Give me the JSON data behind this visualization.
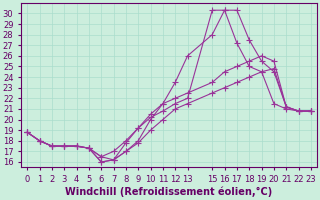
{
  "xlabel": "Windchill (Refroidissement éolien,°C)",
  "bg_color": "#cceedd",
  "line_color": "#993399",
  "xlim": [
    -0.5,
    23.5
  ],
  "ylim": [
    15.5,
    31.0
  ],
  "xticks": [
    0,
    1,
    2,
    3,
    4,
    5,
    6,
    7,
    8,
    9,
    10,
    11,
    12,
    13,
    15,
    16,
    17,
    18,
    19,
    20,
    21,
    22,
    23
  ],
  "xtick_labels": [
    "0",
    "1",
    "2",
    "3",
    "4",
    "5",
    "6",
    "7",
    "8",
    "9",
    "10",
    "11",
    "12",
    "13",
    "15",
    "16",
    "17",
    "18",
    "19",
    "20",
    "21",
    "22",
    "23"
  ],
  "yticks": [
    16,
    17,
    18,
    19,
    20,
    21,
    22,
    23,
    24,
    25,
    26,
    27,
    28,
    29,
    30
  ],
  "x_vals": [
    0,
    1,
    2,
    3,
    4,
    5,
    6,
    7,
    8,
    9,
    10,
    11,
    12,
    13,
    15,
    16,
    17,
    18,
    19,
    20,
    21,
    22,
    23
  ],
  "lines": [
    [
      18.8,
      18.0,
      17.5,
      17.5,
      17.5,
      17.3,
      16.5,
      16.2,
      17.0,
      17.8,
      19.0,
      20.0,
      21.0,
      21.5,
      22.5,
      23.0,
      23.5,
      24.0,
      24.5,
      24.8,
      21.2,
      20.8,
      20.8
    ],
    [
      18.8,
      18.0,
      17.5,
      17.5,
      17.5,
      17.3,
      16.5,
      17.0,
      18.0,
      19.2,
      20.2,
      20.8,
      21.5,
      22.0,
      30.3,
      30.3,
      27.2,
      25.0,
      24.5,
      21.5,
      21.0,
      20.8,
      20.8
    ],
    [
      18.8,
      18.0,
      17.5,
      17.5,
      17.5,
      17.3,
      16.0,
      16.2,
      17.0,
      18.0,
      20.0,
      21.5,
      23.5,
      26.0,
      28.0,
      30.3,
      30.3,
      27.5,
      25.5,
      24.5,
      21.2,
      20.8,
      20.8
    ],
    [
      18.8,
      18.0,
      17.5,
      17.5,
      17.5,
      17.3,
      16.0,
      16.2,
      17.8,
      19.2,
      20.5,
      21.5,
      22.0,
      22.5,
      23.5,
      24.5,
      25.0,
      25.5,
      26.0,
      25.5,
      21.2,
      20.8,
      20.8
    ]
  ],
  "marker": "+",
  "markersize": 4,
  "linewidth": 0.8,
  "font_color": "#660066",
  "tick_fontsize": 6,
  "label_fontsize": 7,
  "grid_color": "#aaddcc",
  "grid_linewidth": 0.5
}
